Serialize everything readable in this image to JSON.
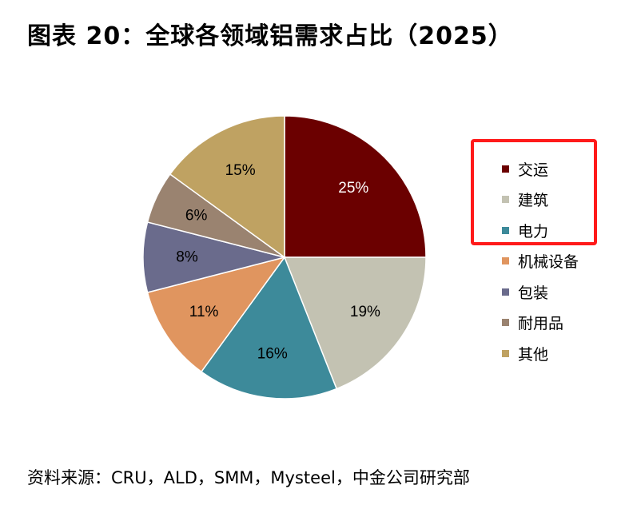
{
  "title": "图表 20：全球各领域铝需求占比（2025）",
  "source": "资料来源：CRU，ALD，SMM，Mysteel，中金公司研究部",
  "chart_data": {
    "type": "pie",
    "title": "图表 20：全球各领域铝需求占比（2025）",
    "start_angle": "12 o'clock, clockwise",
    "legend_position": "right",
    "highlighted_legend_entries": [
      "交运",
      "建筑",
      "电力"
    ],
    "highlight_color": "#ff1a1a",
    "slices": [
      {
        "label": "交运",
        "value": 25,
        "value_label": "25%",
        "color": "#6b0000",
        "label_color": "#ffffff"
      },
      {
        "label": "建筑",
        "value": 19,
        "value_label": "19%",
        "color": "#c3c2b2",
        "label_color": "#000000"
      },
      {
        "label": "电力",
        "value": 16,
        "value_label": "16%",
        "color": "#3d8a9a",
        "label_color": "#000000"
      },
      {
        "label": "机械设备",
        "value": 11,
        "value_label": "11%",
        "color": "#e0955f",
        "label_color": "#000000"
      },
      {
        "label": "包装",
        "value": 8,
        "value_label": "8%",
        "color": "#6a6b8c",
        "label_color": "#000000"
      },
      {
        "label": "耐用品",
        "value": 6,
        "value_label": "6%",
        "color": "#9a8370",
        "label_color": "#000000"
      },
      {
        "label": "其他",
        "value": 15,
        "value_label": "15%",
        "color": "#bfa262",
        "label_color": "#000000"
      }
    ]
  }
}
